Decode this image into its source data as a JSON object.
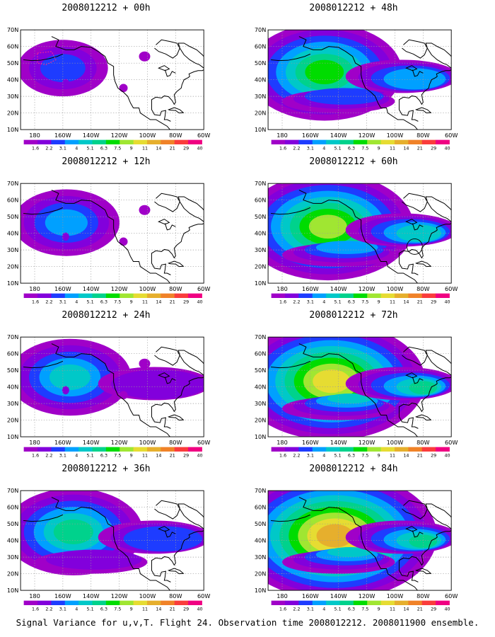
{
  "caption": "Signal Variance for u,v,T. Flight 24. Observation time 2008012212. 2008011900 ensemble.",
  "axes": {
    "lon_labels": [
      "180",
      "160W",
      "140W",
      "120W",
      "100W",
      "80W",
      "60W"
    ],
    "lat_labels": [
      "70N",
      "60N",
      "50N",
      "40N",
      "30N",
      "20N",
      "10N"
    ]
  },
  "colorbar": {
    "labels": [
      "1.6",
      "2.2",
      "3.1",
      "4",
      "5.1",
      "6.3",
      "7.5",
      "9",
      "11",
      "14",
      "21",
      "29",
      "40"
    ],
    "colors": [
      "#a000c8",
      "#8200dc",
      "#1e3cff",
      "#00a0ff",
      "#00c8c8",
      "#00d28c",
      "#00dc00",
      "#a0e632",
      "#e6dc32",
      "#e6af2d",
      "#f08228",
      "#fa3c3c",
      "#f00082"
    ]
  },
  "panels": [
    {
      "title": "2008012212 + 00h",
      "lead_hours": 0,
      "intensity": 0
    },
    {
      "title": "2008012212 + 12h",
      "lead_hours": 12,
      "intensity": 1
    },
    {
      "title": "2008012212 + 24h",
      "lead_hours": 24,
      "intensity": 2
    },
    {
      "title": "2008012212 + 36h",
      "lead_hours": 36,
      "intensity": 3
    },
    {
      "title": "2008012212 + 48h",
      "lead_hours": 48,
      "intensity": 4
    },
    {
      "title": "2008012212 + 60h",
      "lead_hours": 60,
      "intensity": 5
    },
    {
      "title": "2008012212 + 72h",
      "lead_hours": 72,
      "intensity": 6
    },
    {
      "title": "2008012212 + 84h",
      "lead_hours": 84,
      "intensity": 7
    }
  ]
}
